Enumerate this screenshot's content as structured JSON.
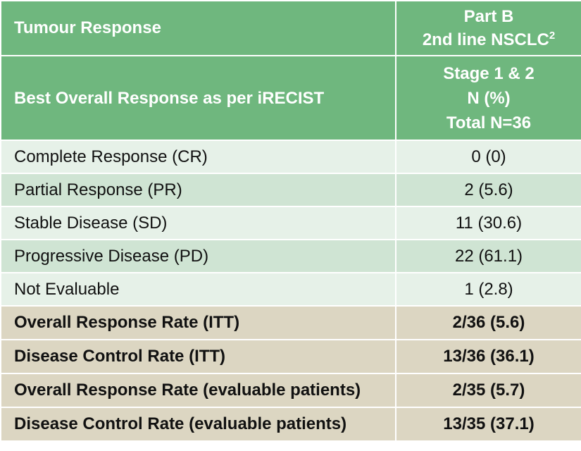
{
  "header": {
    "row1": {
      "label": "Tumour Response",
      "col_line1": "Part B",
      "col_line2": "2nd line NSCLC",
      "col_superscript": "2"
    },
    "row2": {
      "label": "Best Overall Response as per iRECIST",
      "col_line1": "Stage 1 & 2",
      "col_line2": "N (%)",
      "col_line3": "Total N=36"
    }
  },
  "rows": [
    {
      "label": "Complete Response (CR)",
      "value": "0 (0)"
    },
    {
      "label": "Partial Response (PR)",
      "value": "2 (5.6)"
    },
    {
      "label": "Stable Disease (SD)",
      "value": "11 (30.6)"
    },
    {
      "label": "Progressive Disease (PD)",
      "value": "22 (61.1)"
    },
    {
      "label": "Not Evaluable",
      "value": "1 (2.8)"
    }
  ],
  "summary_rows": [
    {
      "label": "Overall Response Rate (ITT)",
      "value": "2/36 (5.6)"
    },
    {
      "label": "Disease Control Rate (ITT)",
      "value": "13/36 (36.1)"
    },
    {
      "label": "Overall Response Rate (evaluable patients)",
      "value": "2/35 (5.7)"
    },
    {
      "label": "Disease Control Rate (evaluable patients)",
      "value": "13/35 (37.1)"
    }
  ],
  "colors": {
    "header_bg": "#6fb77e",
    "row_light": "#e6f1e8",
    "row_medium": "#cfe4d3",
    "summary_bg": "#dcd6c2"
  }
}
